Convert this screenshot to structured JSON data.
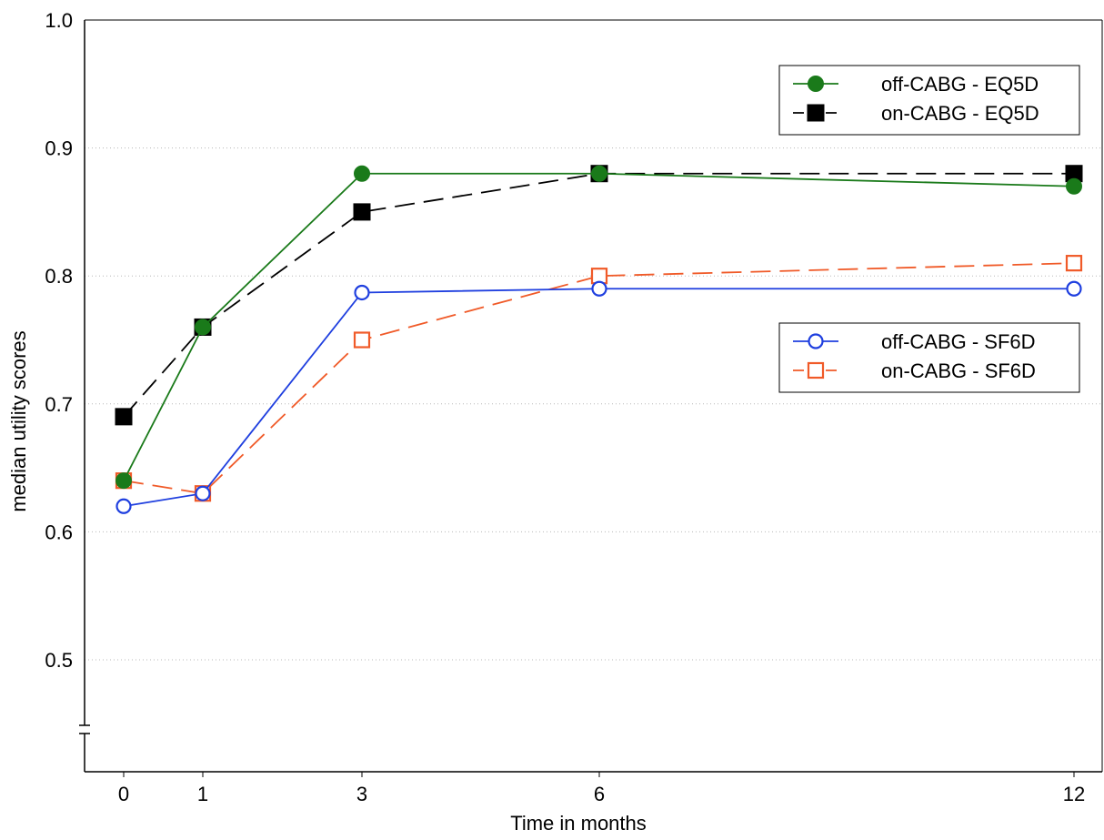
{
  "chart_data": {
    "type": "line",
    "title": "",
    "xlabel": "Time in months",
    "ylabel": "median utility scores",
    "x": [
      0,
      1,
      3,
      6,
      12
    ],
    "x_tick_labels": [
      "0",
      "1",
      "3",
      "6",
      "12"
    ],
    "ylim": [
      0.45,
      1.0
    ],
    "y_axis_break": true,
    "y_tick_labels": [
      "0.5",
      "0.6",
      "0.7",
      "0.8",
      "0.9",
      "1.0"
    ],
    "y_ticks": [
      0.5,
      0.6,
      0.7,
      0.8,
      0.9,
      1.0
    ],
    "grid": "horizontal dotted",
    "legends": [
      {
        "placement": "top-right",
        "entries": [
          "off-CABG - EQ5D",
          "on-CABG - EQ5D"
        ]
      },
      {
        "placement": "center-right",
        "entries": [
          "off-CABG - SF6D",
          "on-CABG - SF6D"
        ]
      }
    ],
    "series": [
      {
        "name": "off-CABG - EQ5D",
        "values": [
          0.64,
          0.76,
          0.88,
          0.88,
          0.87
        ],
        "color": "#1a7a1a",
        "marker": "filled-circle",
        "line": "solid"
      },
      {
        "name": "on-CABG - EQ5D",
        "values": [
          0.69,
          0.76,
          0.85,
          0.88,
          0.88
        ],
        "color": "#000000",
        "marker": "filled-square",
        "line": "dashed"
      },
      {
        "name": "off-CABG - SF6D",
        "values": [
          0.62,
          0.63,
          0.787,
          0.79,
          0.79
        ],
        "color": "#1f3fdf",
        "marker": "open-circle",
        "line": "solid"
      },
      {
        "name": "on-CABG - SF6D",
        "values": [
          0.64,
          0.63,
          0.75,
          0.8,
          0.81
        ],
        "color": "#f05a28",
        "marker": "open-square",
        "line": "dashed"
      }
    ]
  }
}
